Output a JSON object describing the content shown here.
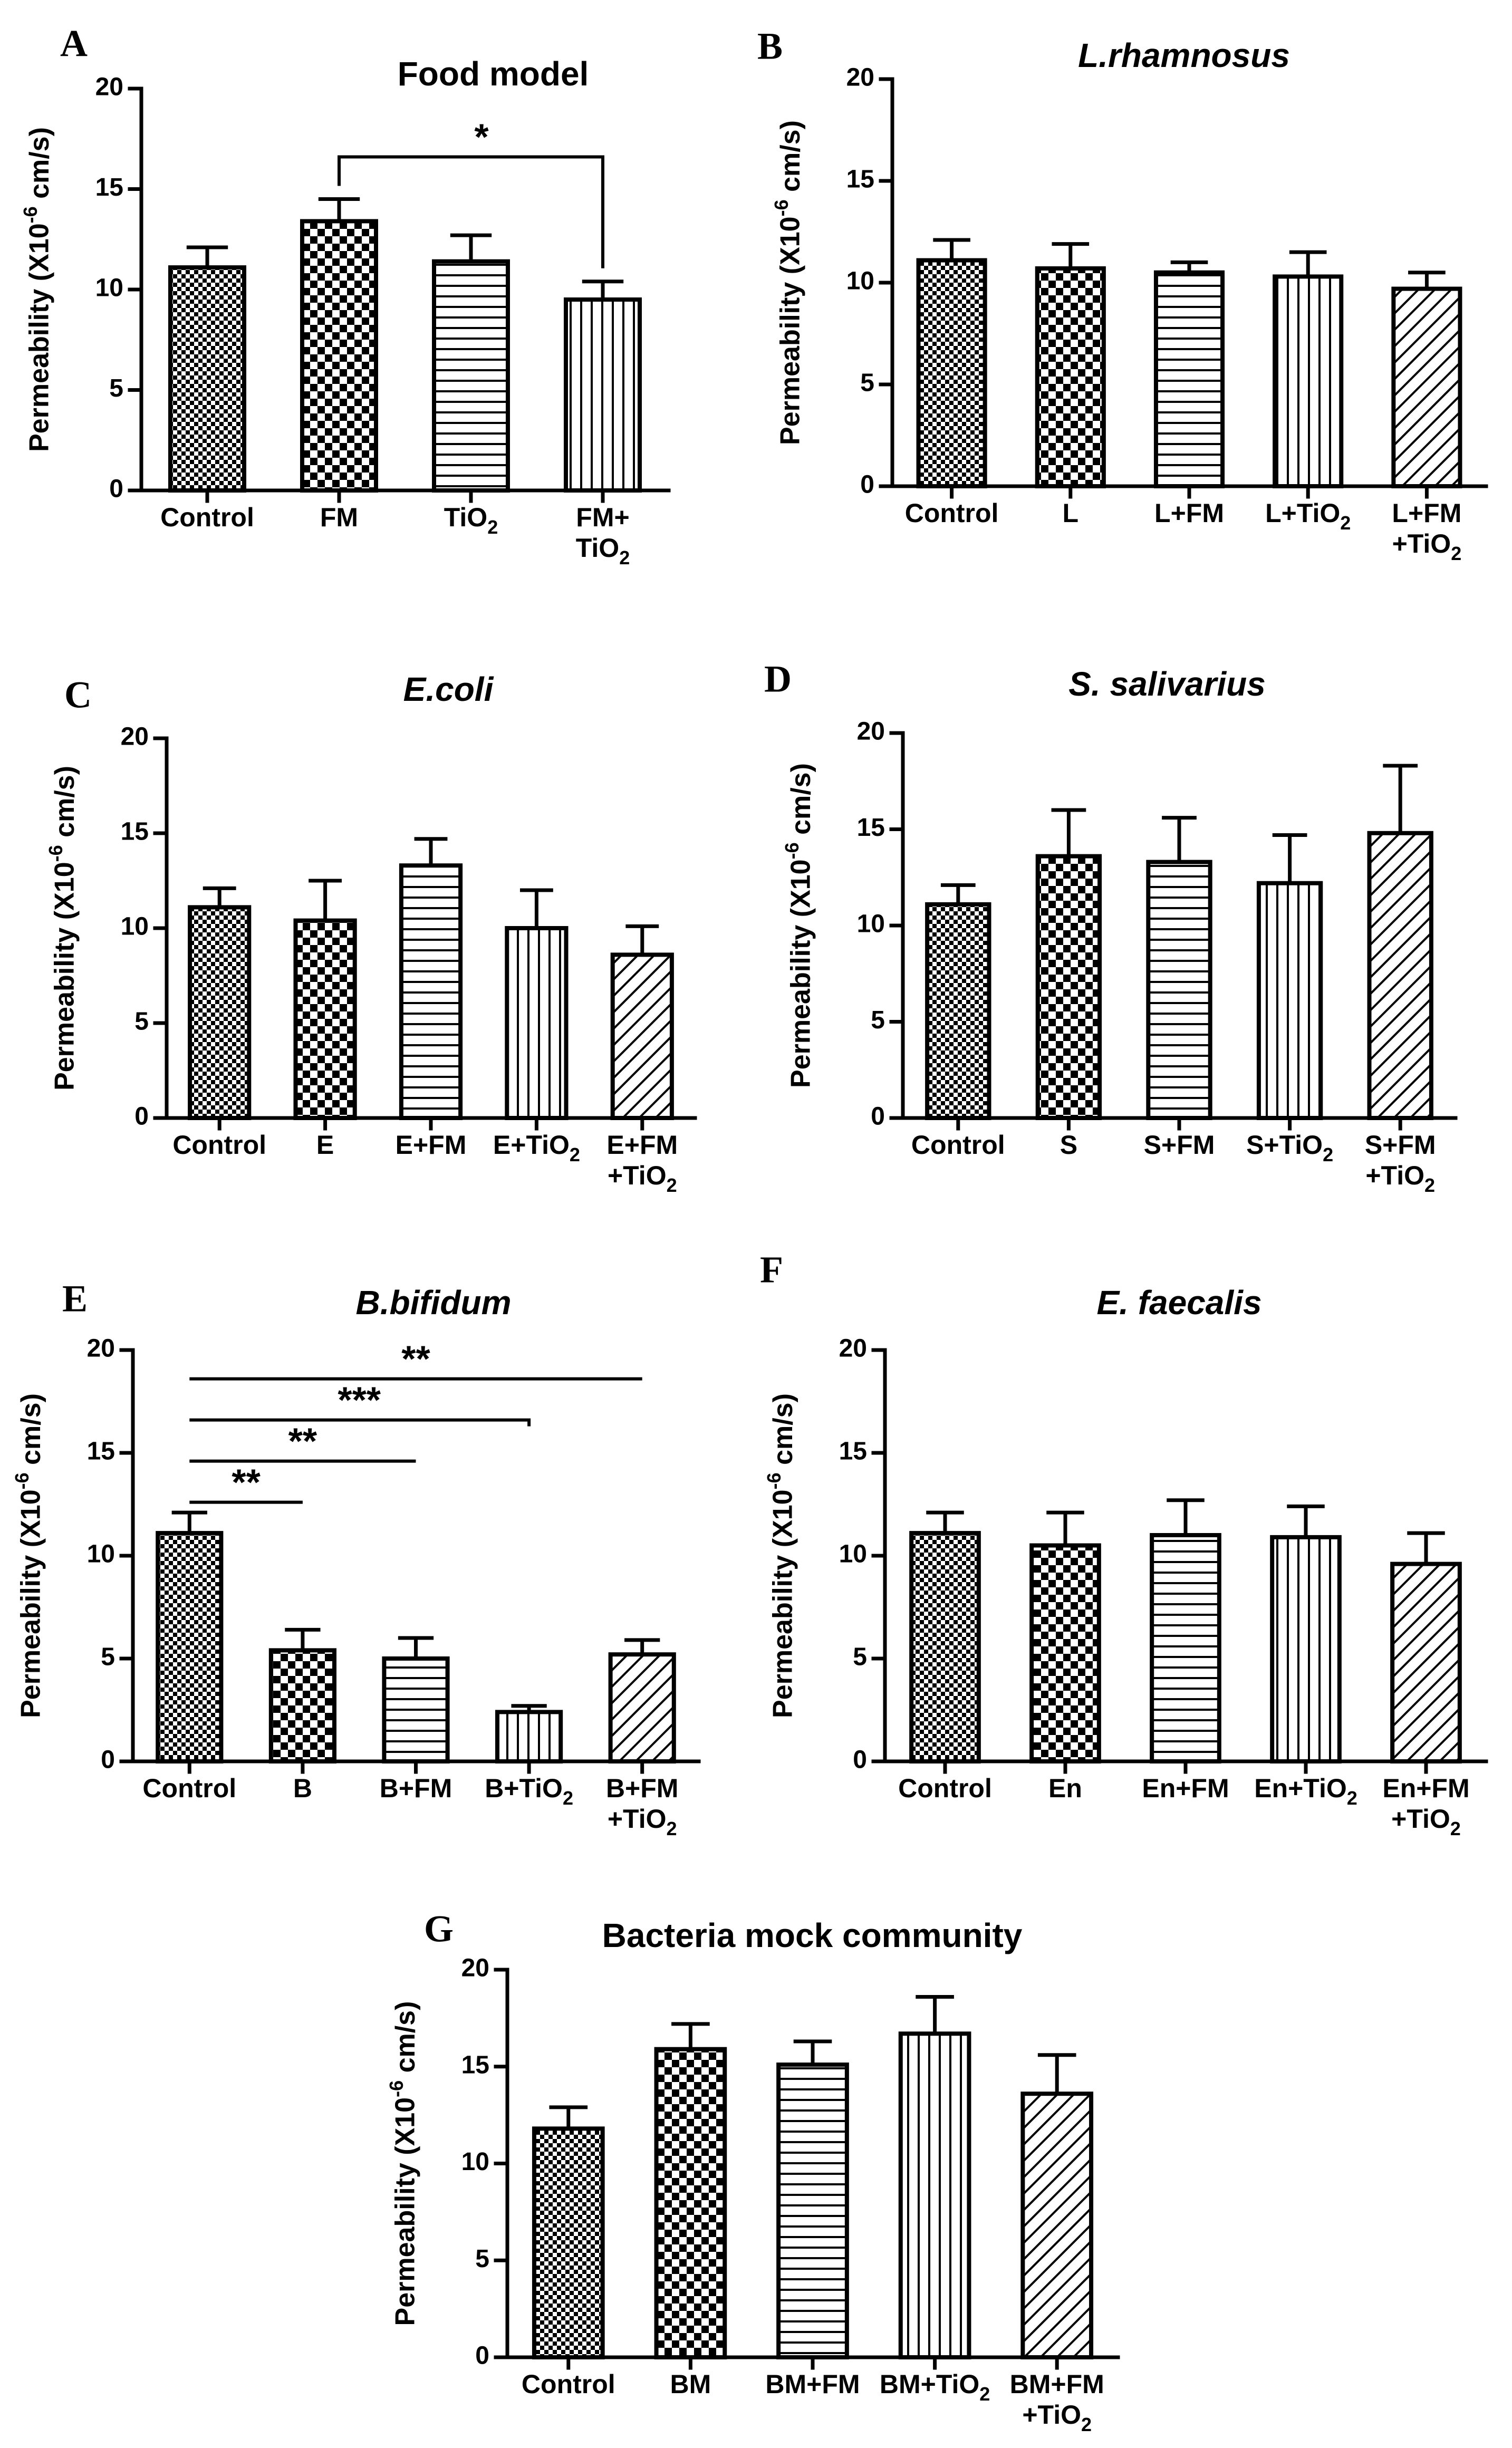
{
  "figure": {
    "y_axis_label": "Permeability (X10-6 cm/s)",
    "y_axis_label_parts": [
      "Permeability (X10",
      "-6",
      " cm/s)"
    ]
  },
  "chart_data": [
    {
      "panel": "A",
      "type": "bar",
      "title": "Food model",
      "title_style": "normal",
      "xlabel": "",
      "ylabel": "Permeability (X10-6 cm/s)",
      "ylim": [
        0,
        20
      ],
      "yticks": [
        0,
        5,
        10,
        15,
        20
      ],
      "categories": [
        "Control",
        "FM",
        "TiO2",
        "FM+ TiO2"
      ],
      "category_lines": [
        [
          "Control"
        ],
        [
          "FM"
        ],
        [
          "TiO|2"
        ],
        [
          "FM+",
          "TiO|2"
        ]
      ],
      "values": [
        11.1,
        13.4,
        11.4,
        9.5
      ],
      "errors": [
        1.0,
        1.1,
        1.3,
        0.9
      ],
      "patterns": [
        "checker-fine",
        "checker",
        "horizontal",
        "vertical"
      ],
      "significance": [
        {
          "from": 1,
          "to": 3,
          "label": "*",
          "y": 16.6,
          "style": "bracket"
        }
      ]
    },
    {
      "panel": "B",
      "type": "bar",
      "title": "L.rhamnosus",
      "title_style": "italic",
      "xlabel": "",
      "ylabel": "Permeability (X10-6 cm/s)",
      "ylim": [
        0,
        20
      ],
      "yticks": [
        0,
        5,
        10,
        15,
        20
      ],
      "categories": [
        "Control",
        "L",
        "L+FM",
        "L+TiO2",
        "L+FM +TiO2"
      ],
      "category_lines": [
        [
          "Control"
        ],
        [
          "L"
        ],
        [
          "L+FM"
        ],
        [
          "L+TiO|2"
        ],
        [
          "L+FM",
          "+TiO|2"
        ]
      ],
      "values": [
        11.1,
        10.7,
        10.5,
        10.3,
        9.7
      ],
      "errors": [
        1.0,
        1.2,
        0.5,
        1.2,
        0.8
      ],
      "patterns": [
        "checker-fine",
        "checker",
        "horizontal",
        "vertical",
        "diagonal"
      ],
      "significance": []
    },
    {
      "panel": "C",
      "type": "bar",
      "title": "E.coli",
      "title_style": "italic",
      "xlabel": "",
      "ylabel": "Permeability (X10-6 cm/s)",
      "ylim": [
        0,
        20
      ],
      "yticks": [
        0,
        5,
        10,
        15,
        20
      ],
      "categories": [
        "Control",
        "E",
        "E+FM",
        "E+TiO2",
        "E+FM +TiO2"
      ],
      "category_lines": [
        [
          "Control"
        ],
        [
          "E"
        ],
        [
          "E+FM"
        ],
        [
          "E+TiO|2"
        ],
        [
          "E+FM",
          "+TiO|2"
        ]
      ],
      "values": [
        11.1,
        10.4,
        13.3,
        10.0,
        8.6
      ],
      "errors": [
        1.0,
        2.1,
        1.4,
        2.0,
        1.5
      ],
      "patterns": [
        "checker-fine",
        "checker",
        "horizontal",
        "vertical",
        "diagonal"
      ],
      "significance": []
    },
    {
      "panel": "D",
      "type": "bar",
      "title": "S. salivarius",
      "title_style": "italic",
      "xlabel": "",
      "ylabel": "Permeability (X10-6 cm/s)",
      "ylim": [
        0,
        20
      ],
      "yticks": [
        0,
        5,
        10,
        15,
        20
      ],
      "categories": [
        "Control",
        "S",
        "S+FM",
        "S+TiO2",
        "S+FM +TiO2"
      ],
      "category_lines": [
        [
          "Control"
        ],
        [
          "S"
        ],
        [
          "S+FM"
        ],
        [
          "S+TiO|2"
        ],
        [
          "S+FM",
          "+TiO|2"
        ]
      ],
      "values": [
        11.1,
        13.6,
        13.3,
        12.2,
        14.8
      ],
      "errors": [
        1.0,
        2.4,
        2.3,
        2.5,
        3.5
      ],
      "patterns": [
        "checker-fine",
        "checker",
        "horizontal",
        "vertical",
        "diagonal"
      ],
      "significance": []
    },
    {
      "panel": "E",
      "type": "bar",
      "title": "B.bifidum",
      "title_style": "italic",
      "xlabel": "",
      "ylabel": "Permeability (X10-6 cm/s)",
      "ylim": [
        0,
        20
      ],
      "yticks": [
        0,
        5,
        10,
        15,
        20
      ],
      "categories": [
        "Control",
        "B",
        "B+FM",
        "B+TiO2",
        "B+FM +TiO2"
      ],
      "category_lines": [
        [
          "Control"
        ],
        [
          "B"
        ],
        [
          "B+FM"
        ],
        [
          "B+TiO|2"
        ],
        [
          "B+FM",
          "+TiO|2"
        ]
      ],
      "values": [
        11.1,
        5.4,
        5.0,
        2.4,
        5.2
      ],
      "errors": [
        1.0,
        1.0,
        1.0,
        0.3,
        0.7
      ],
      "patterns": [
        "checker-fine",
        "checker",
        "horizontal",
        "vertical",
        "diagonal"
      ],
      "significance": [
        {
          "from": 0,
          "to": 1,
          "label": "**",
          "y": 12.6,
          "style": "line"
        },
        {
          "from": 0,
          "to": 2,
          "label": "**",
          "y": 14.6,
          "style": "line"
        },
        {
          "from": 0,
          "to": 3,
          "label": "***",
          "y": 16.6,
          "style": "line"
        },
        {
          "from": 0,
          "to": 4,
          "label": "**",
          "y": 18.6,
          "style": "line"
        }
      ]
    },
    {
      "panel": "F",
      "type": "bar",
      "title": "E. faecalis",
      "title_style": "italic",
      "xlabel": "",
      "ylabel": "Permeability (X10-6 cm/s)",
      "ylim": [
        0,
        20
      ],
      "yticks": [
        0,
        5,
        10,
        15,
        20
      ],
      "categories": [
        "Control",
        "En",
        "En+FM",
        "En+TiO2",
        "En+FM +TiO2"
      ],
      "category_lines": [
        [
          "Control"
        ],
        [
          "En"
        ],
        [
          "En+FM"
        ],
        [
          "En+TiO|2"
        ],
        [
          "En+FM",
          "+TiO|2"
        ]
      ],
      "values": [
        11.1,
        10.5,
        11.0,
        10.9,
        9.6
      ],
      "errors": [
        1.0,
        1.6,
        1.7,
        1.5,
        1.5
      ],
      "patterns": [
        "checker-fine",
        "checker",
        "horizontal",
        "vertical",
        "diagonal"
      ],
      "significance": []
    },
    {
      "panel": "G",
      "type": "bar",
      "title": "Bacteria mock community",
      "title_style": "normal",
      "xlabel": "",
      "ylabel": "Permeability (X10-6 cm/s)",
      "ylim": [
        0,
        20
      ],
      "yticks": [
        0,
        5,
        10,
        15,
        20
      ],
      "categories": [
        "Control",
        "BM",
        "BM+FM",
        "BM+TiO2",
        "BM+FM +TiO2"
      ],
      "category_lines": [
        [
          "Control"
        ],
        [
          "BM"
        ],
        [
          "BM+FM"
        ],
        [
          "BM+TiO|2"
        ],
        [
          "BM+FM",
          "+TiO|2"
        ]
      ],
      "values": [
        11.8,
        15.9,
        15.1,
        16.7,
        13.6
      ],
      "errors": [
        1.1,
        1.3,
        1.2,
        1.9,
        2.0
      ],
      "patterns": [
        "checker-fine",
        "checker",
        "horizontal",
        "vertical",
        "diagonal"
      ],
      "significance": []
    }
  ]
}
